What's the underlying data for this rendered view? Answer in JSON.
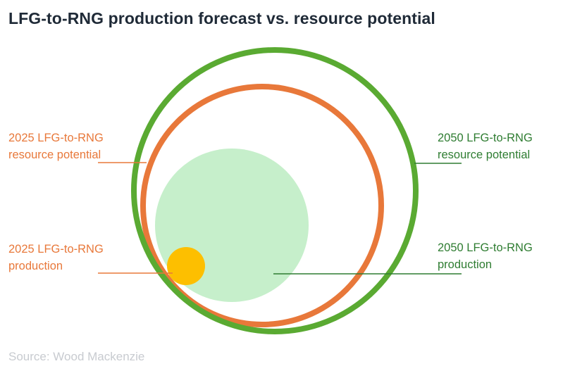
{
  "title": "LFG-to-RNG production forecast vs. resource potential",
  "source": "Source: Wood Mackenzie",
  "colors": {
    "resource_2050": "#5aaa32",
    "resource_2025": "#e8783a",
    "production_2050": "#c6efcb",
    "production_2025": "#fdbf00",
    "label_2025": "#e8783a",
    "label_2050": "#2f7d32",
    "title": "#1f2a37",
    "source": "#c8cbd0"
  },
  "chart_data": {
    "type": "area",
    "title": "LFG-to-RNG production forecast vs. resource potential",
    "encoding": "nested circles, area proportional to quantity (no values printed)",
    "series": [
      {
        "name": "2050 LFG-to-RNG resource potential",
        "kind": "ring",
        "color": "#5aaa32"
      },
      {
        "name": "2025 LFG-to-RNG resource potential",
        "kind": "ring",
        "color": "#e8783a"
      },
      {
        "name": "2050 LFG-to-RNG production",
        "kind": "disc",
        "color": "#c6efcb"
      },
      {
        "name": "2025 LFG-to-RNG production",
        "kind": "disc",
        "color": "#fdbf00"
      }
    ],
    "labels": {
      "resource_2025": [
        "2025 LFG-to-RNG",
        "resource potential"
      ],
      "production_2025": [
        "2025 LFG-to-RNG",
        "production"
      ],
      "resource_2050": [
        "2050 LFG-to-RNG",
        "resource potential"
      ],
      "production_2050": [
        "2050 LFG-to-RNG",
        "production"
      ]
    }
  }
}
